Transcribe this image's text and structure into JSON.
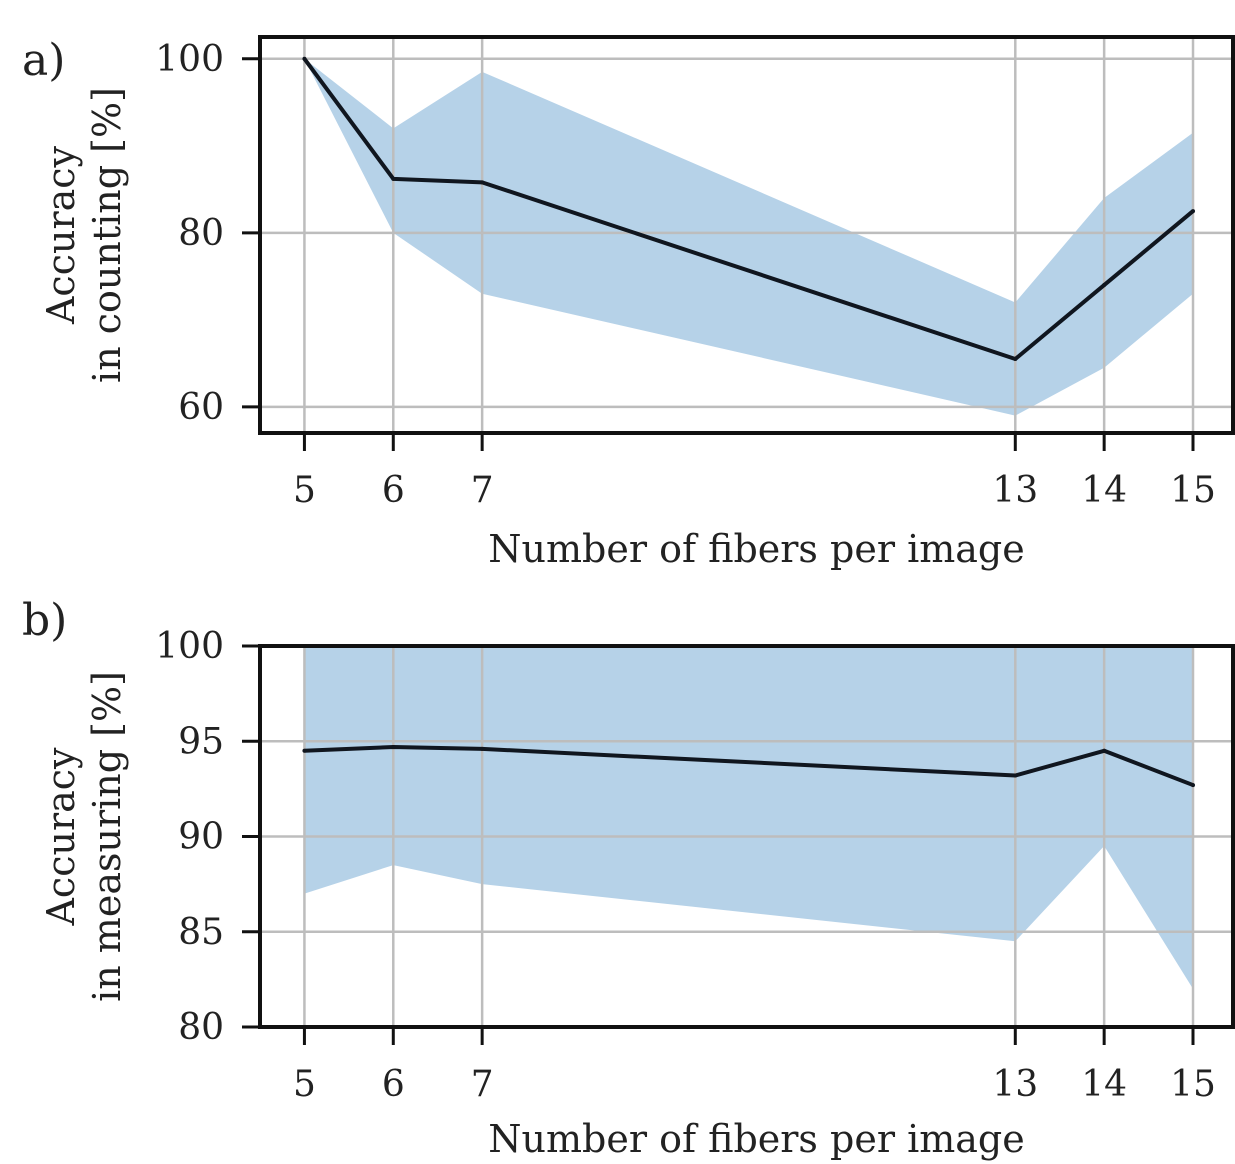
{
  "chart_data": [
    {
      "type": "line",
      "panel_label": "a)",
      "x": [
        5,
        6,
        7,
        13,
        14,
        15
      ],
      "series": [
        {
          "values": [
            100,
            86.2,
            85.8,
            65.5,
            74,
            82.5
          ],
          "band_lower": [
            100,
            80,
            73,
            59,
            64.5,
            73
          ],
          "band_upper": [
            100,
            92,
            98.5,
            72,
            84,
            91.5
          ]
        }
      ],
      "xlabel": "Number of fibers per image",
      "ylabel_lines": [
        "Accuracy",
        "in counting [%]"
      ],
      "xticks": [
        "5",
        "6",
        "7",
        "13",
        "14",
        "15"
      ],
      "yticks": [
        "60",
        "80",
        "100"
      ],
      "ylim": [
        57,
        102.5
      ],
      "xlim": [
        4.5,
        15.45
      ],
      "grid": true,
      "line_color": "#10161f",
      "band_color": "#b6d2e8"
    },
    {
      "type": "line",
      "panel_label": "b)",
      "x": [
        5,
        6,
        7,
        13,
        14,
        15
      ],
      "series": [
        {
          "values": [
            94.5,
            94.7,
            94.6,
            93.2,
            94.5,
            92.7
          ],
          "band_lower": [
            87,
            88.5,
            87.5,
            84.5,
            89.5,
            82
          ],
          "band_upper": [
            100,
            100,
            100,
            100,
            100,
            100
          ]
        }
      ],
      "xlabel": "Number of fibers per image",
      "ylabel_lines": [
        "Accuracy",
        "in measuring [%]"
      ],
      "xticks": [
        "5",
        "6",
        "7",
        "13",
        "14",
        "15"
      ],
      "yticks": [
        "80",
        "85",
        "90",
        "95",
        "100"
      ],
      "ylim": [
        80,
        100
      ],
      "xlim": [
        4.5,
        15.45
      ],
      "grid": true,
      "line_color": "#10161f",
      "band_color": "#b6d2e8"
    }
  ]
}
